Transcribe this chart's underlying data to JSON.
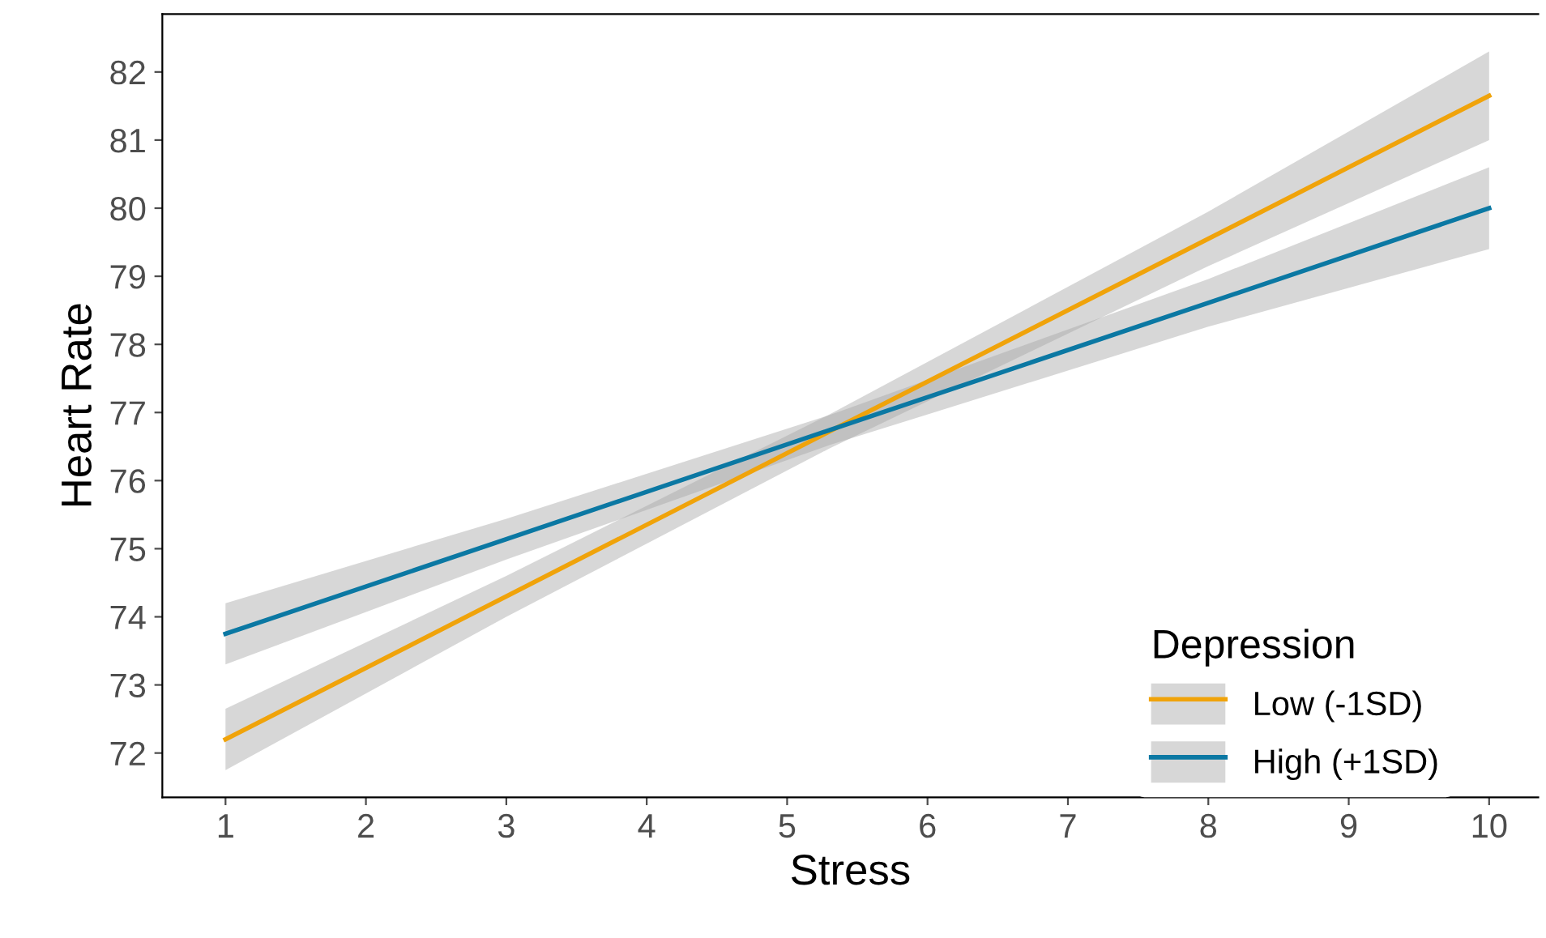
{
  "chart_data": {
    "type": "line",
    "xlabel": "Stress",
    "ylabel": "Heart Rate",
    "legend_title": "Depression",
    "series": [
      {
        "name": "Low (-1SD)",
        "color": "#f0a30a",
        "x": [
          1,
          3,
          5.3,
          8,
          10
        ],
        "values": [
          72.2,
          74.3,
          76.72,
          79.55,
          81.65
        ],
        "lower": [
          71.75,
          74.0,
          76.47,
          79.15,
          81.0
        ],
        "upper": [
          72.65,
          74.6,
          76.97,
          79.95,
          82.3
        ]
      },
      {
        "name": "High (+1SD)",
        "color": "#0b78a3",
        "x": [
          1,
          3,
          5.3,
          8,
          10
        ],
        "values": [
          73.75,
          75.14,
          76.74,
          78.61,
          80.0
        ],
        "lower": [
          73.3,
          74.84,
          76.52,
          78.26,
          79.4
        ],
        "upper": [
          74.2,
          75.44,
          76.96,
          78.96,
          80.6
        ]
      }
    ],
    "xlim": [
      0.55,
      10.35
    ],
    "ylim": [
      71.35,
      82.85
    ],
    "xticks": [
      1,
      2,
      3,
      4,
      5,
      6,
      7,
      8,
      9,
      10
    ],
    "yticks": [
      72,
      73,
      74,
      75,
      76,
      77,
      78,
      79,
      80,
      81,
      82
    ],
    "grid": false,
    "legend": "bottom right",
    "marker": "none",
    "line_style": "solid"
  }
}
